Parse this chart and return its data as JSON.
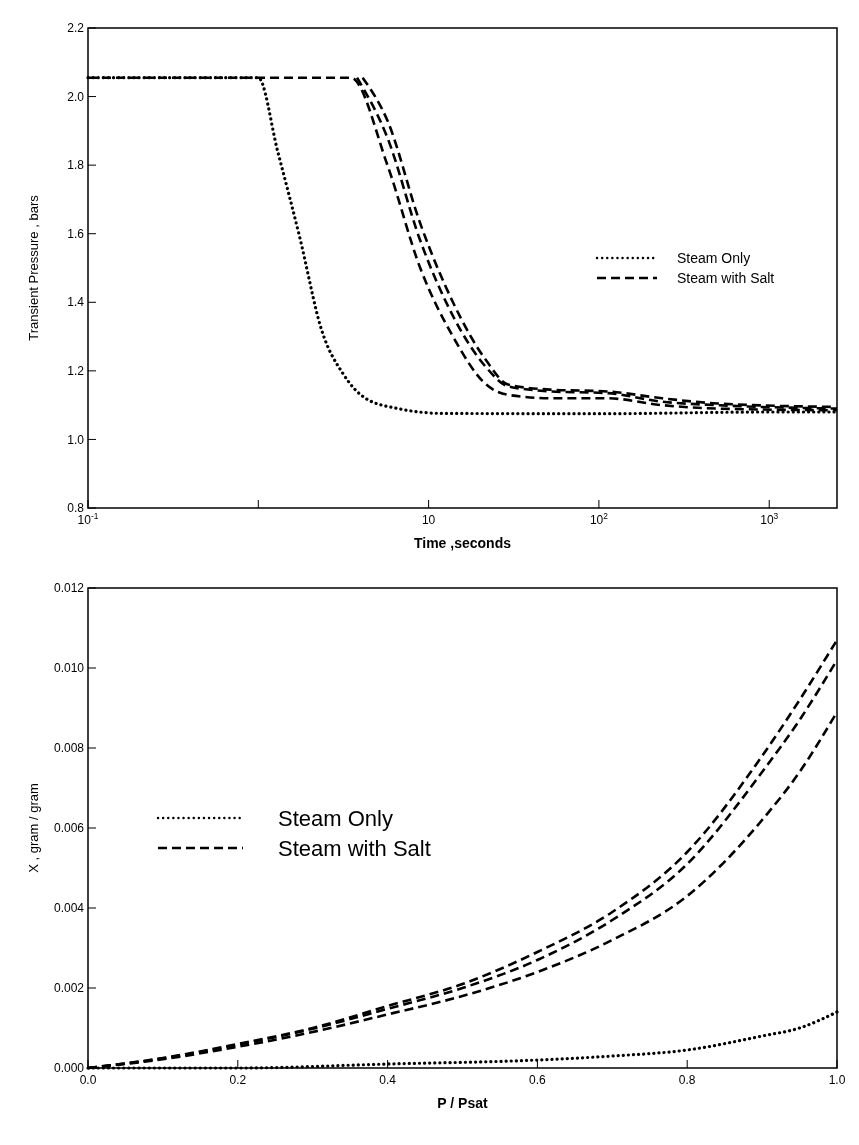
{
  "chart_data": [
    {
      "type": "line",
      "xlabel": "Time ,seconds",
      "ylabel": "Transient  Pressure , bars",
      "log": "x",
      "xlim": [
        0.1,
        2500
      ],
      "ylim": [
        0.8,
        2.2
      ],
      "xticks": [
        {
          "value": 0.1,
          "label": "10$^{-1}$"
        },
        {
          "value": 1,
          "label": null
        },
        10,
        {
          "value": 100,
          "label": "10$^{2}$"
        },
        {
          "value": 1000,
          "label": "10$^{3}$"
        }
      ],
      "yticks": [
        0.8,
        {
          "value": 1,
          "label": "1.0"
        },
        1.2,
        1.4,
        1.6,
        1.8,
        {
          "value": 2,
          "label": "2.0"
        },
        2.2
      ],
      "legend": "right",
      "series": [
        {
          "name": "Steam Only",
          "color": "#000000",
          "line_style": "dotted",
          "x": [
            0.1,
            1,
            1.3,
            1.75,
            2.35,
            3.16,
            4.26,
            6.6,
            12,
            100,
            1000,
            2500
          ],
          "values": [
            2.055,
            2.055,
            1.84,
            1.59,
            1.32,
            1.19,
            1.12,
            1.09,
            1.076,
            1.075,
            1.08,
            1.08
          ]
        },
        {
          "name": "Steam with Salt",
          "color": "#000000",
          "line_style": "dashed",
          "x": [
            0.1,
            3.5,
            5.73,
            8.93,
            13.9,
            21.8,
            29.3,
            53,
            112,
            235,
            493,
            2500
          ],
          "values": [
            2.055,
            2.055,
            1.8,
            1.5,
            1.3,
            1.16,
            1.13,
            1.12,
            1.12,
            1.1,
            1.09,
            1.085
          ]
        },
        {
          "color": "#000000",
          "line_style": "dashed",
          "x": [
            3.8,
            5.73,
            8.93,
            13.9,
            21.8,
            29.3,
            53,
            112,
            235,
            493,
            2500
          ],
          "values": [
            2.055,
            1.88,
            1.58,
            1.36,
            1.21,
            1.155,
            1.14,
            1.135,
            1.11,
            1.1,
            1.09
          ]
        },
        {
          "color": "#000000",
          "line_style": "dashed",
          "x": [
            4.1,
            5.73,
            8.93,
            13.9,
            21.8,
            29.3,
            53,
            112,
            235,
            493,
            2300
          ],
          "values": [
            2.055,
            1.93,
            1.63,
            1.4,
            1.23,
            1.16,
            1.145,
            1.14,
            1.12,
            1.105,
            1.095
          ]
        }
      ]
    },
    {
      "type": "line",
      "xlabel": "P / Psat",
      "ylabel": "X , gram / gram",
      "xlim": [
        0,
        1
      ],
      "ylim": [
        0,
        0.012
      ],
      "xticks": [
        {
          "value": 0,
          "label": "0.0"
        },
        0.2,
        0.4,
        0.6,
        0.8,
        {
          "value": 1,
          "label": "1.0"
        }
      ],
      "yticks": [
        {
          "value": 0,
          "label": "0.000"
        },
        {
          "value": 0.002,
          "label": "0.002"
        },
        {
          "value": 0.004,
          "label": "0.004"
        },
        {
          "value": 0.006,
          "label": "0.006"
        },
        {
          "value": 0.008,
          "label": "0.008"
        },
        {
          "value": 0.01,
          "label": "0.010"
        },
        {
          "value": 0.012,
          "label": "0.012"
        }
      ],
      "legend": "center left",
      "series": [
        {
          "name": "Steam Only",
          "color": "#000000",
          "line_style": "dotted",
          "x": [
            0,
            0.2,
            0.4,
            0.6,
            0.7,
            0.8,
            0.9,
            0.95,
            1
          ],
          "values": [
            0,
            0,
            0.0001,
            0.0002,
            0.0003,
            0.00045,
            0.0008,
            0.001,
            0.0014
          ]
        },
        {
          "name": "Steam with Salt",
          "color": "#000000",
          "line_style": "dashed",
          "x": [
            0,
            0.1,
            0.2,
            0.3,
            0.4,
            0.5,
            0.6,
            0.7,
            0.8,
            0.9,
            0.95,
            1
          ],
          "values": [
            0,
            0.00022,
            0.00053,
            0.0009,
            0.00134,
            0.0018,
            0.0024,
            0.0032,
            0.0043,
            0.0062,
            0.0074,
            0.0089
          ]
        },
        {
          "color": "#000000",
          "line_style": "dashed",
          "x": [
            0,
            0.1,
            0.2,
            0.3,
            0.4,
            0.5,
            0.6,
            0.7,
            0.8,
            0.9,
            0.95,
            1
          ],
          "values": [
            0,
            0.00024,
            0.00058,
            0.00098,
            0.00148,
            0.002,
            0.0027,
            0.0037,
            0.0051,
            0.0074,
            0.0087,
            0.0102
          ]
        },
        {
          "color": "#000000",
          "line_style": "dashed",
          "x": [
            0,
            0.1,
            0.2,
            0.3,
            0.4,
            0.5,
            0.6,
            0.7,
            0.8,
            0.9,
            0.95,
            1
          ],
          "values": [
            0,
            0.00025,
            0.0006,
            0.001,
            0.00155,
            0.0021,
            0.0029,
            0.0039,
            0.0054,
            0.0078,
            0.0092,
            0.0107
          ]
        }
      ]
    }
  ]
}
